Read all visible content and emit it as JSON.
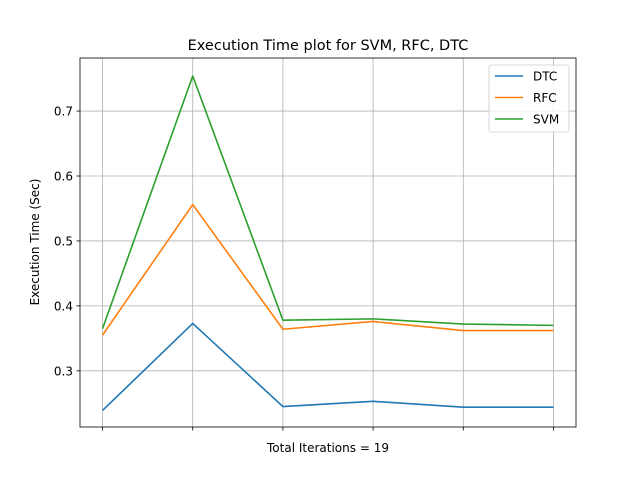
{
  "chart_data": {
    "type": "line",
    "title": "Execution Time plot for SVM, RFC, DTC",
    "xlabel": "Total Iterations = 19",
    "ylabel": "Execution Time (Sec)",
    "x": [
      0,
      1,
      2,
      3,
      4,
      5
    ],
    "xlim": [
      -0.25,
      5.25
    ],
    "ylim": [
      0.2135,
      0.7817
    ],
    "yticks": [
      0.3,
      0.4,
      0.5,
      0.6,
      0.7
    ],
    "ytick_labels": [
      "0.3",
      "0.4",
      "0.5",
      "0.6",
      "0.7"
    ],
    "grid": true,
    "legend_position": "top-right",
    "series": [
      {
        "name": "DTC",
        "color": "#1f77b4",
        "values": [
          0.239,
          0.373,
          0.245,
          0.253,
          0.244,
          0.244
        ]
      },
      {
        "name": "RFC",
        "color": "#ff7f0e",
        "values": [
          0.355,
          0.556,
          0.364,
          0.376,
          0.362,
          0.362
        ]
      },
      {
        "name": "SVM",
        "color": "#2ca02c",
        "values": [
          0.365,
          0.754,
          0.378,
          0.38,
          0.372,
          0.37
        ]
      }
    ]
  }
}
